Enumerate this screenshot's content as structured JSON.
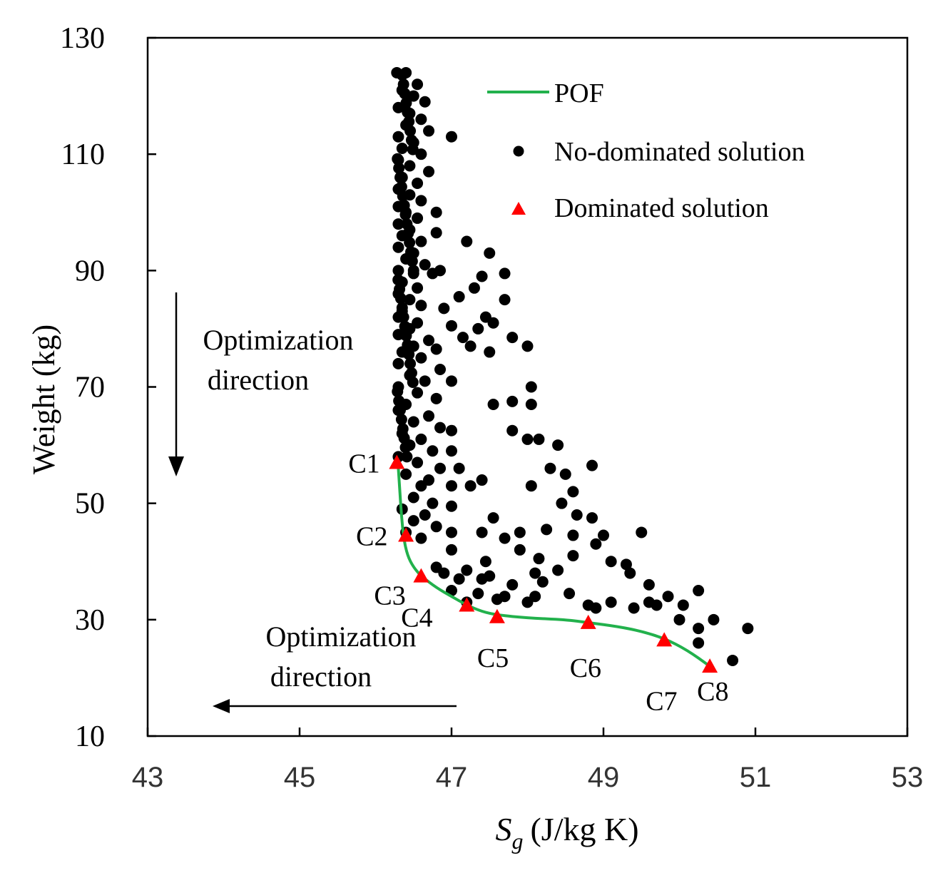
{
  "chart_data": {
    "type": "scatter",
    "xlabel_symbol": "S",
    "xlabel_sub": "g",
    "xlabel_unit": "(J/kg K)",
    "ylabel": "Weight (kg)",
    "xlim": [
      43,
      53
    ],
    "ylim": [
      10,
      130
    ],
    "xticks": [
      "43",
      "45",
      "47",
      "49",
      "51",
      "53"
    ],
    "yticks": [
      "10",
      "30",
      "50",
      "70",
      "90",
      "110",
      "130"
    ],
    "legend": {
      "position": "top-right",
      "entries": [
        {
          "label": "POF",
          "marker": "line"
        },
        {
          "label": "No-dominated solution",
          "marker": "circle"
        },
        {
          "label": "Dominated solution",
          "marker": "triangle"
        }
      ]
    },
    "annotations": {
      "vertical_arrow_text": [
        "Optimization",
        "direction"
      ],
      "horizontal_arrow_text": [
        "Optimization",
        "direction"
      ]
    },
    "colors": {
      "pof": "#22b14c",
      "dominated": "#ff0000",
      "nondominated": "#000000"
    },
    "pof_curve": [
      [
        46.3,
        56
      ],
      [
        46.32,
        52
      ],
      [
        46.34,
        48
      ],
      [
        46.37,
        44
      ],
      [
        46.42,
        41
      ],
      [
        46.5,
        39
      ],
      [
        46.6,
        37.5
      ],
      [
        46.8,
        35.5
      ],
      [
        47.0,
        34
      ],
      [
        47.2,
        32.5
      ],
      [
        47.4,
        31.4
      ],
      [
        47.6,
        30.8
      ],
      [
        48.0,
        30.3
      ],
      [
        48.5,
        30
      ],
      [
        48.8,
        29.5
      ],
      [
        49.2,
        28.8
      ],
      [
        49.5,
        28
      ],
      [
        49.8,
        26.8
      ],
      [
        50.1,
        24.8
      ],
      [
        50.4,
        22
      ]
    ],
    "dominated_points": [
      {
        "label": "C1",
        "x": 46.28,
        "y": 57.0
      },
      {
        "label": "C2",
        "x": 46.4,
        "y": 44.5
      },
      {
        "label": "C3",
        "x": 46.6,
        "y": 37.5
      },
      {
        "label": "C4",
        "x": 47.2,
        "y": 32.5
      },
      {
        "label": "C5",
        "x": 47.6,
        "y": 30.5
      },
      {
        "label": "C6",
        "x": 48.8,
        "y": 29.5
      },
      {
        "label": "C7",
        "x": 49.8,
        "y": 26.5
      },
      {
        "label": "C8",
        "x": 50.4,
        "y": 22.0
      }
    ],
    "nondominated_points": [
      [
        46.28,
        124
      ],
      [
        46.4,
        124
      ],
      [
        46.55,
        122
      ],
      [
        46.35,
        121
      ],
      [
        46.5,
        120
      ],
      [
        46.65,
        119
      ],
      [
        46.3,
        118
      ],
      [
        46.45,
        117
      ],
      [
        46.6,
        116
      ],
      [
        46.4,
        115
      ],
      [
        46.7,
        114
      ],
      [
        46.3,
        113
      ],
      [
        47.0,
        113
      ],
      [
        46.5,
        112
      ],
      [
        46.35,
        111
      ],
      [
        46.6,
        110
      ],
      [
        46.3,
        109
      ],
      [
        46.45,
        108
      ],
      [
        46.7,
        107
      ],
      [
        46.35,
        106
      ],
      [
        46.55,
        105
      ],
      [
        46.3,
        104
      ],
      [
        46.45,
        103
      ],
      [
        46.6,
        102
      ],
      [
        46.3,
        101
      ],
      [
        46.4,
        100
      ],
      [
        46.8,
        100
      ],
      [
        46.55,
        99
      ],
      [
        46.3,
        98
      ],
      [
        46.45,
        97
      ],
      [
        46.8,
        96.5
      ],
      [
        46.35,
        96
      ],
      [
        46.6,
        95
      ],
      [
        47.2,
        95
      ],
      [
        46.3,
        94
      ],
      [
        46.5,
        93
      ],
      [
        47.5,
        93
      ],
      [
        46.4,
        92
      ],
      [
        46.65,
        91
      ],
      [
        46.3,
        90
      ],
      [
        46.5,
        89.5
      ],
      [
        46.75,
        89.5
      ],
      [
        46.85,
        90
      ],
      [
        47.4,
        89
      ],
      [
        47.7,
        89.5
      ],
      [
        46.35,
        88
      ],
      [
        46.55,
        87
      ],
      [
        47.3,
        87
      ],
      [
        46.3,
        86
      ],
      [
        46.45,
        85
      ],
      [
        47.1,
        85.5
      ],
      [
        47.7,
        85
      ],
      [
        46.6,
        84
      ],
      [
        46.9,
        83.5
      ],
      [
        46.35,
        83
      ],
      [
        47.45,
        82
      ],
      [
        46.3,
        82
      ],
      [
        46.55,
        81
      ],
      [
        47.0,
        80.5
      ],
      [
        47.55,
        81
      ],
      [
        46.45,
        80
      ],
      [
        47.35,
        80
      ],
      [
        46.3,
        79
      ],
      [
        46.7,
        78
      ],
      [
        47.15,
        78.5
      ],
      [
        47.8,
        78.5
      ],
      [
        46.5,
        77
      ],
      [
        46.8,
        76.5
      ],
      [
        47.25,
        77
      ],
      [
        48.0,
        77
      ],
      [
        46.35,
        76
      ],
      [
        47.5,
        76
      ],
      [
        46.6,
        75
      ],
      [
        46.3,
        74
      ],
      [
        46.85,
        73
      ],
      [
        46.45,
        72
      ],
      [
        46.65,
        71
      ],
      [
        47.0,
        71
      ],
      [
        46.3,
        70
      ],
      [
        48.05,
        70
      ],
      [
        46.55,
        69
      ],
      [
        46.8,
        68
      ],
      [
        46.4,
        67
      ],
      [
        47.55,
        67
      ],
      [
        47.8,
        67.5
      ],
      [
        48.05,
        67
      ],
      [
        46.3,
        66
      ],
      [
        46.7,
        65
      ],
      [
        46.5,
        64
      ],
      [
        46.85,
        63
      ],
      [
        46.35,
        62
      ],
      [
        47.0,
        62.5
      ],
      [
        47.8,
        62.5
      ],
      [
        46.6,
        61
      ],
      [
        48.0,
        61
      ],
      [
        48.15,
        61
      ],
      [
        46.45,
        60
      ],
      [
        46.75,
        59
      ],
      [
        47.0,
        59
      ],
      [
        48.4,
        60
      ],
      [
        46.3,
        58
      ],
      [
        46.55,
        57
      ],
      [
        46.85,
        56
      ],
      [
        47.1,
        56
      ],
      [
        48.3,
        56
      ],
      [
        48.85,
        56.5
      ],
      [
        46.4,
        55
      ],
      [
        46.7,
        54
      ],
      [
        47.4,
        54
      ],
      [
        48.5,
        55
      ],
      [
        46.6,
        53
      ],
      [
        47.0,
        53
      ],
      [
        47.25,
        53
      ],
      [
        48.05,
        53
      ],
      [
        48.6,
        52
      ],
      [
        46.5,
        51
      ],
      [
        46.75,
        50
      ],
      [
        47.0,
        49.5
      ],
      [
        48.45,
        50
      ],
      [
        46.35,
        49
      ],
      [
        46.65,
        48
      ],
      [
        47.55,
        47.5
      ],
      [
        48.65,
        48
      ],
      [
        48.85,
        47.5
      ],
      [
        46.5,
        47
      ],
      [
        46.8,
        46
      ],
      [
        46.4,
        45
      ],
      [
        47.0,
        45
      ],
      [
        47.4,
        45
      ],
      [
        47.9,
        45
      ],
      [
        48.25,
        45.5
      ],
      [
        48.6,
        44.5
      ],
      [
        49.0,
        44.5
      ],
      [
        49.5,
        45
      ],
      [
        46.6,
        44
      ],
      [
        47.7,
        44
      ],
      [
        48.9,
        43
      ],
      [
        47.0,
        42
      ],
      [
        47.9,
        42
      ],
      [
        47.45,
        40
      ],
      [
        48.15,
        40.5
      ],
      [
        48.6,
        41
      ],
      [
        49.1,
        40
      ],
      [
        49.3,
        39.5
      ],
      [
        46.8,
        39
      ],
      [
        47.2,
        38.5
      ],
      [
        47.5,
        37.5
      ],
      [
        48.1,
        38
      ],
      [
        48.4,
        38.5
      ],
      [
        49.35,
        38
      ],
      [
        46.9,
        38
      ],
      [
        47.1,
        37
      ],
      [
        47.4,
        37
      ],
      [
        47.8,
        36
      ],
      [
        48.2,
        36.5
      ],
      [
        49.6,
        36
      ],
      [
        47.0,
        35
      ],
      [
        47.35,
        34.5
      ],
      [
        47.7,
        34
      ],
      [
        48.1,
        34
      ],
      [
        48.55,
        34.5
      ],
      [
        49.85,
        34
      ],
      [
        50.25,
        35
      ],
      [
        47.2,
        33
      ],
      [
        47.6,
        33.5
      ],
      [
        48.0,
        33
      ],
      [
        48.8,
        32.5
      ],
      [
        49.1,
        33
      ],
      [
        49.6,
        33
      ],
      [
        49.7,
        32.5
      ],
      [
        50.05,
        32.5
      ],
      [
        48.9,
        32
      ],
      [
        49.4,
        32
      ],
      [
        50.0,
        30
      ],
      [
        50.45,
        30
      ],
      [
        50.25,
        28.5
      ],
      [
        50.9,
        28.5
      ],
      [
        50.25,
        26
      ],
      [
        50.7,
        23
      ]
    ]
  }
}
